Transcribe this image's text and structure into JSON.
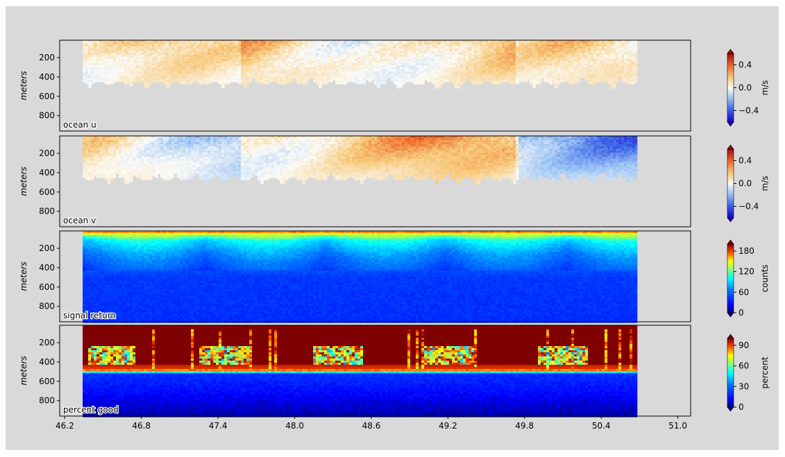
{
  "chart_data": [
    {
      "type": "heatmap",
      "panel_label": "ocean u",
      "ylabel": "meters",
      "y_ticks": [
        200,
        400,
        600,
        800
      ],
      "ylim": [
        960,
        20
      ],
      "x_ticks": [
        46.2,
        46.8,
        47.4,
        48.0,
        48.6,
        49.2,
        49.8,
        50.4,
        51.0
      ],
      "xlim": [
        46.16,
        51.1
      ],
      "data_x_range": [
        46.34,
        50.68
      ],
      "colormap": "RdBu_r-like",
      "colorbar": {
        "label": "m/s",
        "ticks": [
          0.4,
          0.0,
          -0.4
        ],
        "range": [
          -0.6,
          0.6
        ]
      },
      "nodata_color": "#d8d8d8",
      "valid_depth_approx_m": [
        30,
        500
      ]
    },
    {
      "type": "heatmap",
      "panel_label": "ocean v",
      "ylabel": "meters",
      "y_ticks": [
        200,
        400,
        600,
        800
      ],
      "ylim": [
        960,
        20
      ],
      "x_ticks": [
        46.2,
        46.8,
        47.4,
        48.0,
        48.6,
        49.2,
        49.8,
        50.4,
        51.0
      ],
      "xlim": [
        46.16,
        51.1
      ],
      "data_x_range": [
        46.34,
        50.68
      ],
      "colormap": "RdBu_r-like",
      "colorbar": {
        "label": "m/s",
        "ticks": [
          0.4,
          0.0,
          -0.4
        ],
        "range": [
          -0.6,
          0.6
        ]
      },
      "nodata_color": "#d8d8d8",
      "valid_depth_approx_m": [
        30,
        500
      ]
    },
    {
      "type": "heatmap",
      "panel_label": "signal return",
      "ylabel": "meters",
      "y_ticks": [
        200,
        400,
        600,
        800
      ],
      "ylim": [
        960,
        20
      ],
      "x_ticks": [
        46.2,
        46.8,
        47.4,
        48.0,
        48.6,
        49.2,
        49.8,
        50.4,
        51.0
      ],
      "xlim": [
        46.16,
        51.1
      ],
      "data_x_range": [
        46.34,
        50.68
      ],
      "colormap": "jet",
      "colorbar": {
        "label": "counts",
        "ticks": [
          180,
          120,
          60,
          0
        ],
        "range": [
          0,
          200
        ]
      },
      "profile": [
        {
          "depth": 20,
          "value": 180
        },
        {
          "depth": 60,
          "value": 130
        },
        {
          "depth": 120,
          "value": 95
        },
        {
          "depth": 260,
          "value": 70
        },
        {
          "depth": 380,
          "value": 55
        },
        {
          "depth": 500,
          "value": 42
        },
        {
          "depth": 960,
          "value": 38
        }
      ]
    },
    {
      "type": "heatmap",
      "panel_label": "percent good",
      "ylabel": "meters",
      "y_ticks": [
        200,
        400,
        600,
        800
      ],
      "ylim": [
        960,
        20
      ],
      "x_ticks": [
        46.2,
        46.8,
        47.4,
        48.0,
        48.6,
        49.2,
        49.8,
        50.4,
        51.0
      ],
      "xlim": [
        46.16,
        51.1
      ],
      "data_x_range": [
        46.34,
        50.68
      ],
      "colormap": "jet",
      "colorbar": {
        "label": "percent",
        "ticks": [
          90,
          60,
          30,
          0
        ],
        "range": [
          0,
          100
        ]
      },
      "profile": [
        {
          "depth": 20,
          "value": 100
        },
        {
          "depth": 250,
          "value": 100
        },
        {
          "depth": 320,
          "value": 45
        },
        {
          "depth": 380,
          "value": 100
        },
        {
          "depth": 480,
          "value": 90
        },
        {
          "depth": 520,
          "value": 20
        },
        {
          "depth": 960,
          "value": 3
        }
      ]
    }
  ]
}
